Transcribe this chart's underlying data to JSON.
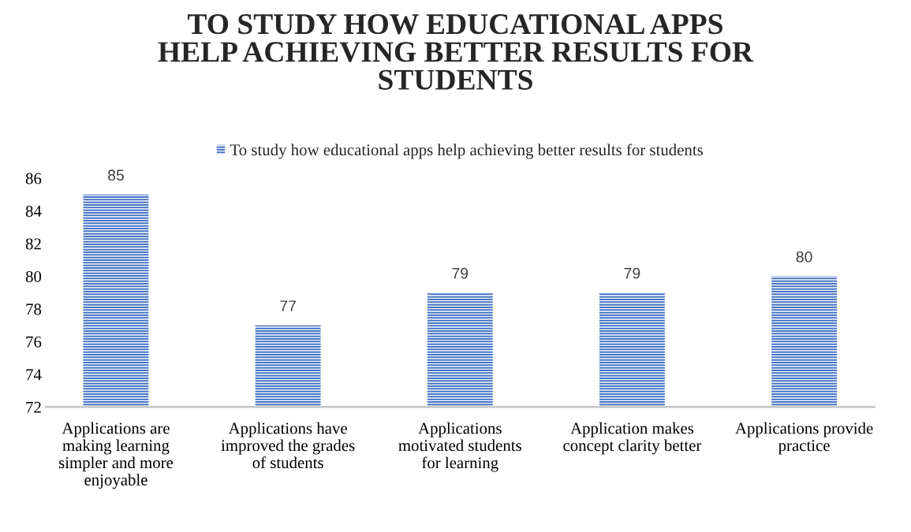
{
  "chart_data": {
    "type": "bar",
    "title": "TO STUDY HOW EDUCATIONAL APPS\nHELP ACHIEVING BETTER RESULTS FOR\nSTUDENTS",
    "categories": [
      "Applications are\nmaking learning\nsimpler and more\nenjoyable",
      "Applications have\nimproved the grades\nof students",
      "Applications\nmotivated students\nfor learning",
      "Application makes\nconcept clarity better",
      "Applications provide\npractice"
    ],
    "series": [
      {
        "name": "To study how educational apps help achieving better results for students",
        "color": "#4472c4",
        "values": [
          85,
          77,
          79,
          79,
          80
        ]
      }
    ],
    "ylim": [
      72,
      86
    ],
    "yticks": [
      72,
      74,
      76,
      78,
      80,
      82,
      84,
      86
    ],
    "grid": false,
    "legend": "top",
    "data_labels": true
  }
}
